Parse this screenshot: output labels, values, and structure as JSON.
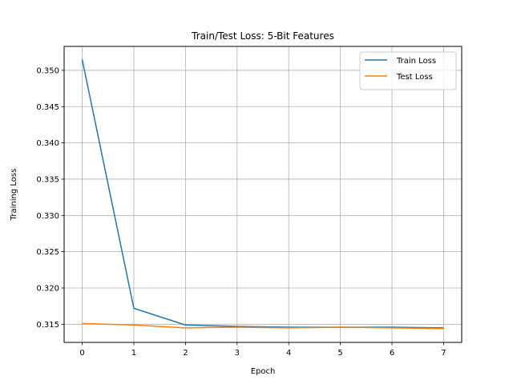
{
  "chart_data": {
    "type": "line",
    "title": "Train/Test Loss: 5-Bit Features",
    "xlabel": "Epoch",
    "ylabel": "Training Loss",
    "xlim": [
      -0.35,
      7.35
    ],
    "ylim": [
      0.3125,
      0.3533
    ],
    "xticks": [
      0,
      1,
      2,
      3,
      4,
      5,
      6,
      7
    ],
    "yticks": [
      0.315,
      0.32,
      0.325,
      0.33,
      0.335,
      0.34,
      0.345,
      0.35
    ],
    "ytick_labels": [
      "0.315",
      "0.320",
      "0.325",
      "0.330",
      "0.335",
      "0.340",
      "0.345",
      "0.350"
    ],
    "grid": true,
    "legend_position": "top-right",
    "x": [
      0,
      1,
      2,
      3,
      4,
      5,
      6,
      7
    ],
    "series": [
      {
        "name": "Train Loss",
        "color": "#1f77b4",
        "values": [
          0.3515,
          0.3172,
          0.3149,
          0.3147,
          0.3146,
          0.3146,
          0.3146,
          0.3145
        ]
      },
      {
        "name": "Test Loss",
        "color": "#ff7f0e",
        "values": [
          0.3151,
          0.3149,
          0.3145,
          0.3146,
          0.3145,
          0.3146,
          0.3145,
          0.3144
        ]
      }
    ]
  }
}
